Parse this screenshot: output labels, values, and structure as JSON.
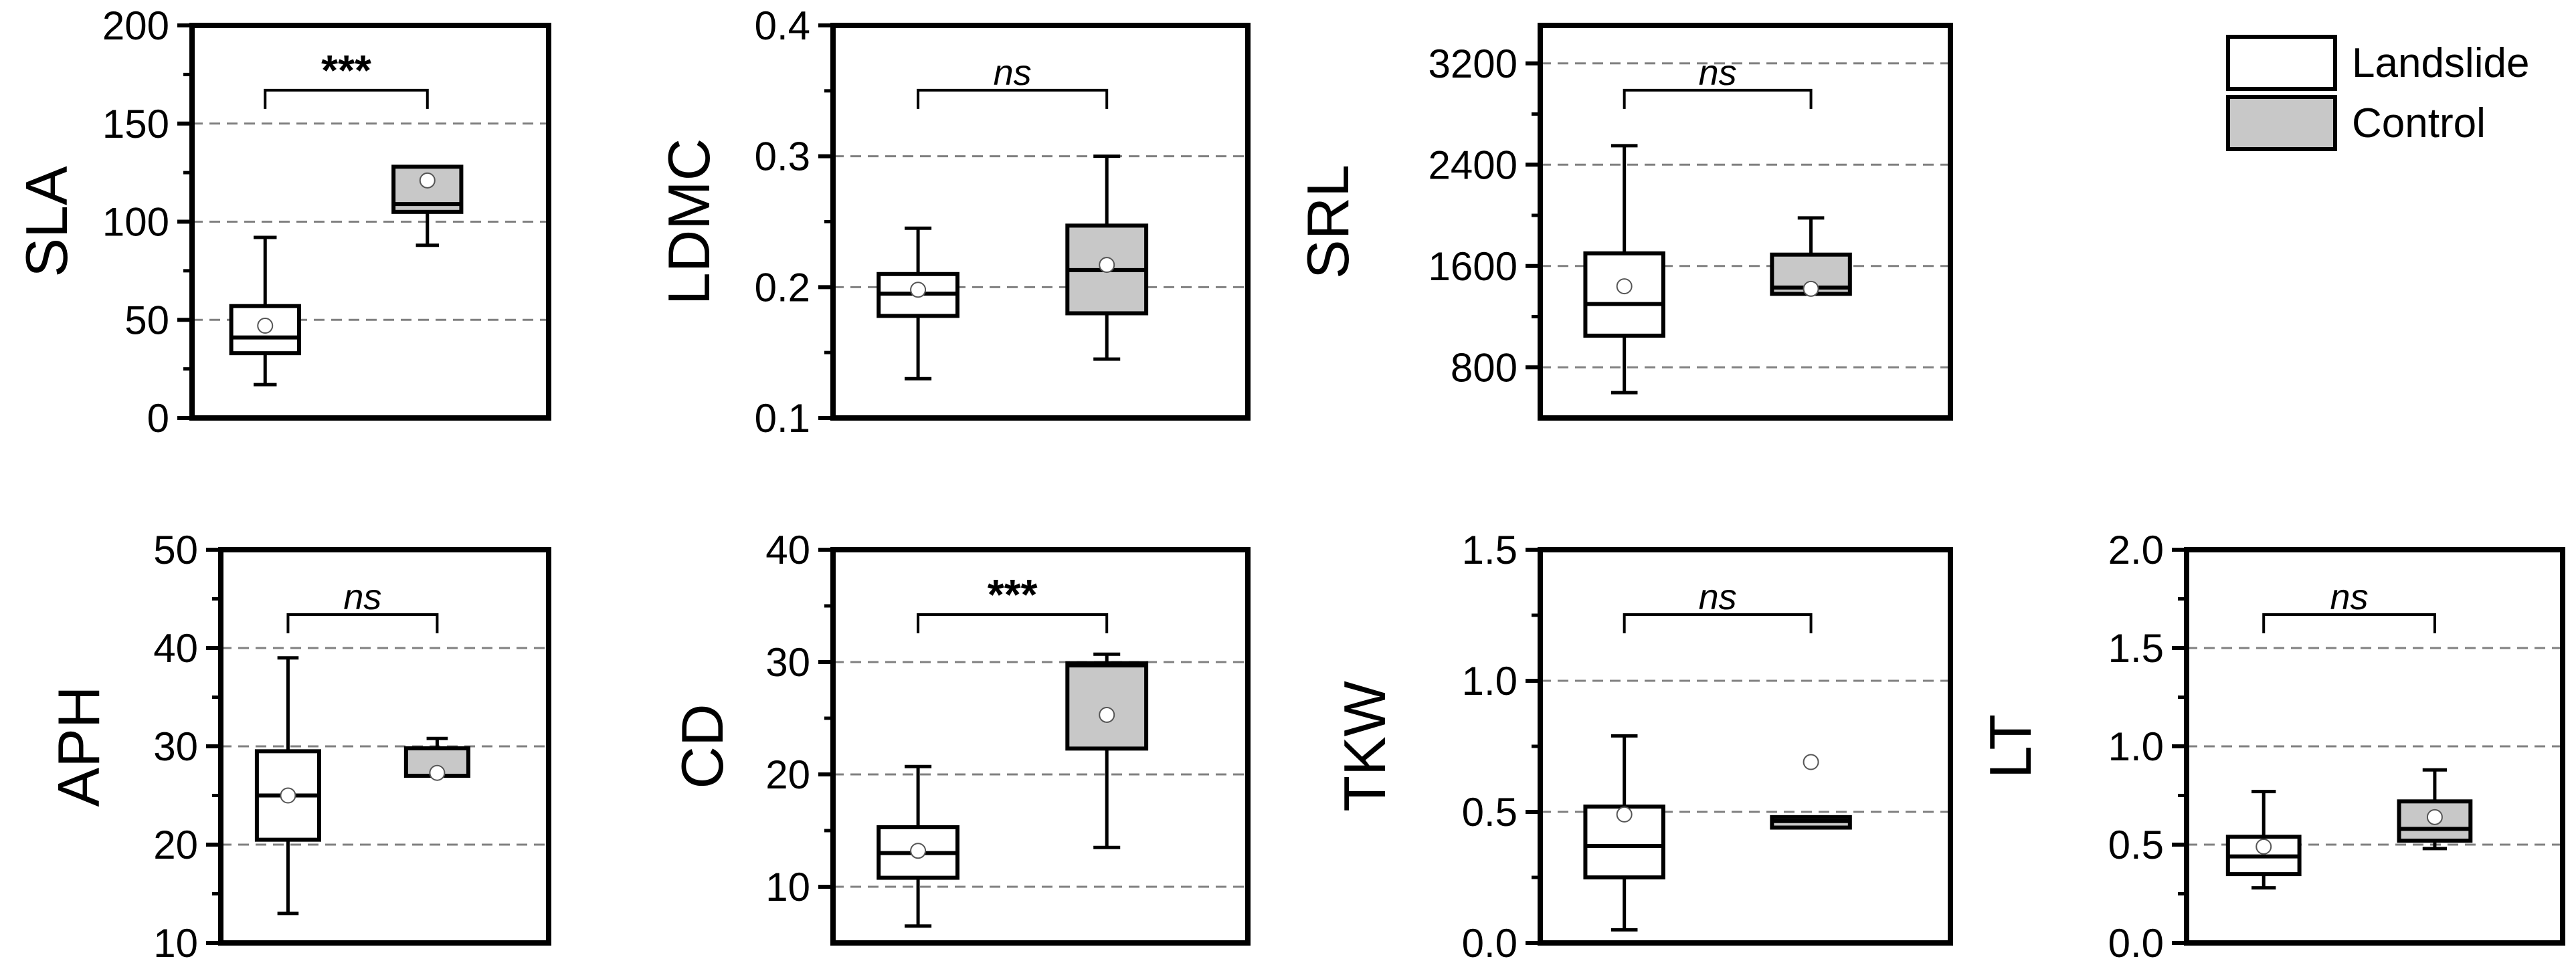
{
  "colors": {
    "landslide_fill": "#ffffff",
    "control_fill": "#c8c8c8",
    "stroke": "#000000",
    "grid": "#808080",
    "mean_marker_fill": "#ffffff"
  },
  "legend": {
    "position": "top-right",
    "items": [
      {
        "label": "Landslide",
        "fill": "#ffffff"
      },
      {
        "label": "Control",
        "fill": "#c8c8c8"
      }
    ]
  },
  "chart_data": [
    {
      "type": "box",
      "ylabel": "SLA",
      "ylim": [
        0,
        200
      ],
      "yticks": [
        0,
        50,
        100,
        150,
        200
      ],
      "ytick_labels": [
        "0",
        "50",
        "100",
        "150",
        "200"
      ],
      "minor_ticks": [
        25,
        75,
        125,
        175
      ],
      "grid_y": [
        50,
        100,
        150
      ],
      "categories": [
        "Landslide",
        "Control"
      ],
      "boxes": [
        {
          "name": "Landslide",
          "whisker_low": 17,
          "q1": 33,
          "median": 41,
          "q3": 57,
          "whisker_high": 92,
          "mean": 47
        },
        {
          "name": "Control",
          "whisker_low": 88,
          "q1": 105,
          "median": 109,
          "q3": 128,
          "whisker_high": 128,
          "mean": 121
        }
      ],
      "significance": "***"
    },
    {
      "type": "box",
      "ylabel": "LDMC",
      "ylim": [
        0.1,
        0.4
      ],
      "yticks": [
        0.1,
        0.2,
        0.3,
        0.4
      ],
      "ytick_labels": [
        "0.1",
        "0.2",
        "0.3",
        "0.4"
      ],
      "minor_ticks": [
        0.15,
        0.25,
        0.35
      ],
      "grid_y": [
        0.2,
        0.3
      ],
      "categories": [
        "Landslide",
        "Control"
      ],
      "boxes": [
        {
          "name": "Landslide",
          "whisker_low": 0.13,
          "q1": 0.178,
          "median": 0.195,
          "q3": 0.21,
          "whisker_high": 0.245,
          "mean": 0.198
        },
        {
          "name": "Control",
          "whisker_low": 0.145,
          "q1": 0.18,
          "median": 0.213,
          "q3": 0.247,
          "whisker_high": 0.3,
          "mean": 0.217
        }
      ],
      "significance": "ns"
    },
    {
      "type": "box",
      "ylabel": "SRL",
      "ylim": [
        400,
        3500
      ],
      "yticks": [
        800,
        1600,
        2400,
        3200
      ],
      "ytick_labels": [
        "800",
        "1600",
        "2400",
        "3200"
      ],
      "minor_ticks": [
        1200,
        2000,
        2800
      ],
      "grid_y": [
        800,
        1600,
        2400,
        3200
      ],
      "categories": [
        "Landslide",
        "Control"
      ],
      "boxes": [
        {
          "name": "Landslide",
          "whisker_low": 600,
          "q1": 1050,
          "median": 1300,
          "q3": 1700,
          "whisker_high": 2550,
          "mean": 1440
        },
        {
          "name": "Control",
          "whisker_low": 1380,
          "q1": 1380,
          "median": 1430,
          "q3": 1690,
          "whisker_high": 1980,
          "mean": 1420
        }
      ],
      "significance": "ns"
    },
    {
      "type": "box",
      "ylabel": "APH",
      "ylim": [
        10,
        50
      ],
      "yticks": [
        10,
        20,
        30,
        40,
        50
      ],
      "ytick_labels": [
        "10",
        "20",
        "30",
        "40",
        "50"
      ],
      "minor_ticks": [
        15,
        25,
        35,
        45
      ],
      "grid_y": [
        20,
        30,
        40
      ],
      "categories": [
        "Landslide",
        "Control"
      ],
      "boxes": [
        {
          "name": "Landslide",
          "whisker_low": 13,
          "q1": 20.5,
          "median": 25,
          "q3": 29.5,
          "whisker_high": 39,
          "mean": 25
        },
        {
          "name": "Control",
          "whisker_low": 27,
          "q1": 27,
          "median": 29.8,
          "q3": 29.8,
          "whisker_high": 30.8,
          "mean": 27.3
        }
      ],
      "significance": "ns"
    },
    {
      "type": "box",
      "ylabel": "CD",
      "ylim": [
        5,
        40
      ],
      "yticks": [
        10,
        20,
        30,
        40
      ],
      "ytick_labels": [
        "10",
        "20",
        "30",
        "40"
      ],
      "minor_ticks": [
        15,
        25,
        35
      ],
      "grid_y": [
        10,
        20,
        30
      ],
      "categories": [
        "Landslide",
        "Control"
      ],
      "boxes": [
        {
          "name": "Landslide",
          "whisker_low": 6.5,
          "q1": 10.8,
          "median": 13,
          "q3": 15.3,
          "whisker_high": 20.7,
          "mean": 13.2
        },
        {
          "name": "Control",
          "whisker_low": 13.5,
          "q1": 22.3,
          "median": 29.7,
          "q3": 29.9,
          "whisker_high": 30.7,
          "mean": 25.3
        }
      ],
      "significance": "***"
    },
    {
      "type": "box",
      "ylabel": "TKW",
      "ylim": [
        0,
        1.5
      ],
      "yticks": [
        0,
        0.5,
        1.0,
        1.5
      ],
      "ytick_labels": [
        "0.0",
        "0.5",
        "1.0",
        "1.5"
      ],
      "minor_ticks": [
        0.25,
        0.75,
        1.25
      ],
      "grid_y": [
        0.5,
        1.0
      ],
      "categories": [
        "Landslide",
        "Control"
      ],
      "boxes": [
        {
          "name": "Landslide",
          "whisker_low": 0.05,
          "q1": 0.25,
          "median": 0.37,
          "q3": 0.52,
          "whisker_high": 0.79,
          "mean": 0.49
        },
        {
          "name": "Control",
          "whisker_low": 0.44,
          "q1": 0.44,
          "median": 0.465,
          "q3": 0.48,
          "whisker_high": 0.48,
          "mean": 0.69
        }
      ],
      "significance": "ns"
    },
    {
      "type": "box",
      "ylabel": "LT",
      "ylim": [
        0,
        2.0
      ],
      "yticks": [
        0,
        0.5,
        1.0,
        1.5,
        2.0
      ],
      "ytick_labels": [
        "0.0",
        "0.5",
        "1.0",
        "1.5",
        "2.0"
      ],
      "minor_ticks": [
        0.25,
        0.75,
        1.25,
        1.75
      ],
      "grid_y": [
        0.5,
        1.0,
        1.5
      ],
      "categories": [
        "Landslide",
        "Control"
      ],
      "boxes": [
        {
          "name": "Landslide",
          "whisker_low": 0.28,
          "q1": 0.35,
          "median": 0.44,
          "q3": 0.54,
          "whisker_high": 0.77,
          "mean": 0.49
        },
        {
          "name": "Control",
          "whisker_low": 0.48,
          "q1": 0.52,
          "median": 0.58,
          "q3": 0.72,
          "whisker_high": 0.88,
          "mean": 0.64
        }
      ],
      "significance": "ns"
    }
  ]
}
